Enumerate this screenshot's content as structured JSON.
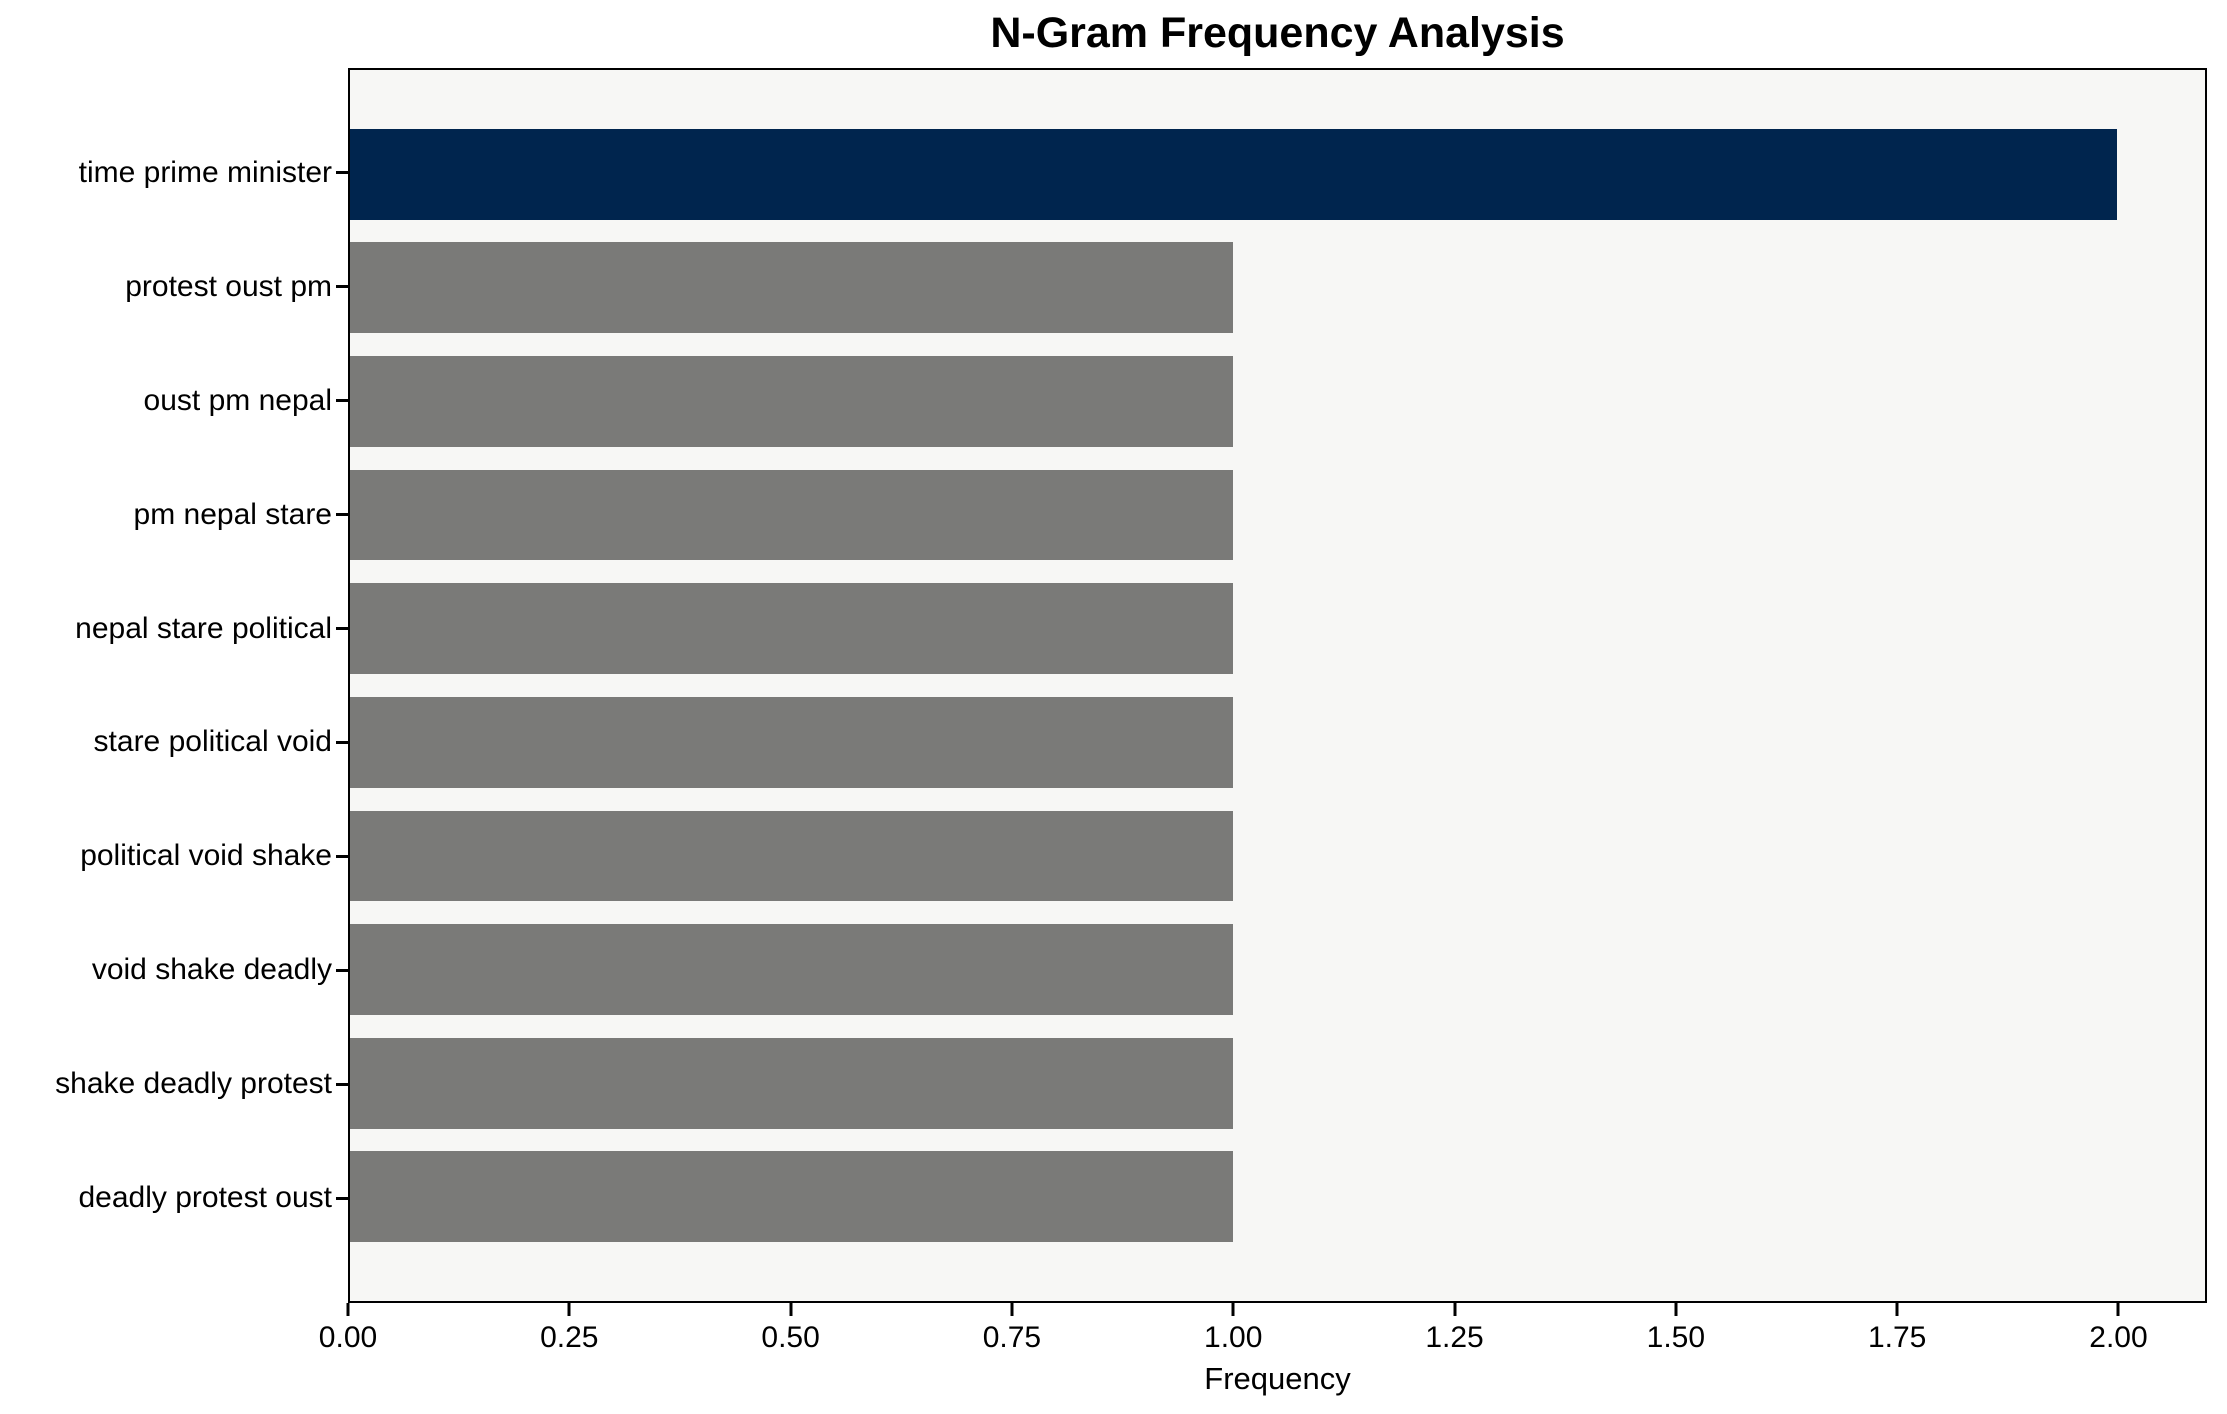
{
  "figure": {
    "background": "#ffffff",
    "plot_background": "#f7f7f5",
    "axis_color": "#000000",
    "text_color": "#000000"
  },
  "chart_data": {
    "type": "bar",
    "orientation": "horizontal",
    "title": "N-Gram Frequency Analysis",
    "xlabel": "Frequency",
    "ylabel": "",
    "categories": [
      "time prime minister",
      "protest oust pm",
      "oust pm nepal",
      "pm nepal stare",
      "nepal stare political",
      "stare political void",
      "political void shake",
      "void shake deadly",
      "shake deadly protest",
      "deadly protest oust"
    ],
    "values": [
      2,
      1,
      1,
      1,
      1,
      1,
      1,
      1,
      1,
      1
    ],
    "bar_colors": [
      "#00254e",
      "#7a7a78",
      "#7a7a78",
      "#7a7a78",
      "#7a7a78",
      "#7a7a78",
      "#7a7a78",
      "#7a7a78",
      "#7a7a78",
      "#7a7a78"
    ],
    "highlight_color": "#00254e",
    "default_bar_color": "#7a7a78",
    "x_tick_values": [
      0,
      0.25,
      0.5,
      0.75,
      1.0,
      1.25,
      1.5,
      1.75,
      2.0
    ],
    "x_tick_labels": [
      "0.00",
      "0.25",
      "0.50",
      "0.75",
      "1.00",
      "1.25",
      "1.50",
      "1.75",
      "2.00"
    ],
    "xlim": [
      0,
      2.1
    ],
    "grid": false,
    "legend": false
  }
}
